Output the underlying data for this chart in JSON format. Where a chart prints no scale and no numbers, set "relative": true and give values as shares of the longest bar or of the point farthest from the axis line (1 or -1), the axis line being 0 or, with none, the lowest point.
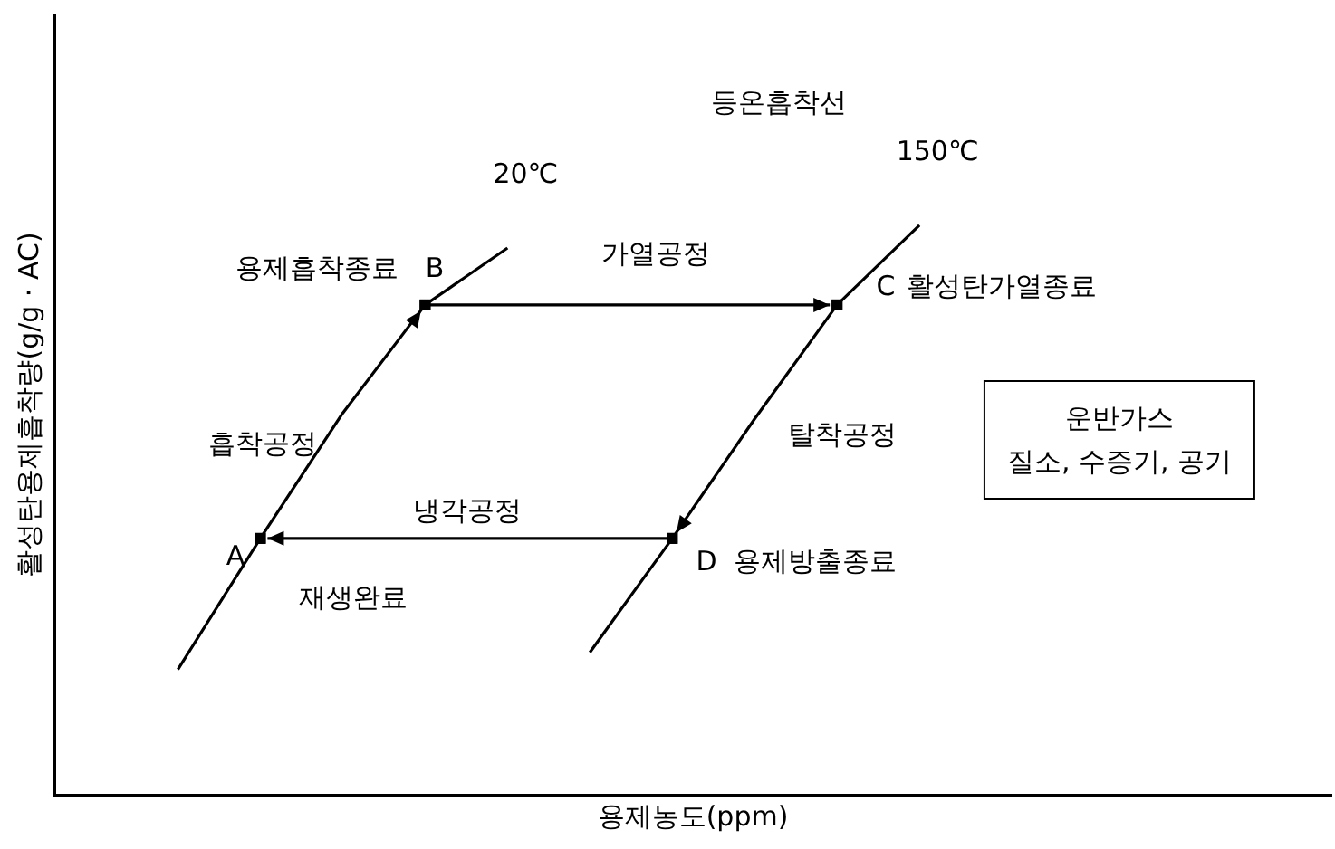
{
  "chart_data": {
    "type": "line",
    "title": "등온흡착선",
    "xlabel": "용제농도(ppm)",
    "ylabel": "활성탄용제흡착량(g/g · AC)",
    "relative": true,
    "categories": [
      null,
      null,
      null,
      null,
      null,
      null,
      null,
      null,
      null,
      null,
      null,
      null,
      null,
      null,
      null,
      null,
      null,
      null,
      null,
      null,
      null,
      null,
      null,
      null,
      null,
      null,
      null,
      null,
      null,
      null,
      null,
      null
    ],
    "series": [
      {
        "name": "20℃",
        "color": "#000000",
        "values": [
          null,
          null,
          null,
          0.22,
          null,
          0.45,
          null,
          0.67,
          null,
          0.86,
          null,
          0.96,
          null,
          null,
          null,
          null,
          null,
          null,
          null,
          null,
          null,
          null,
          null,
          null,
          null,
          null,
          null,
          null,
          null,
          null,
          null,
          null
        ]
      },
      {
        "name": "150℃",
        "color": "#000000",
        "values": [
          null,
          null,
          null,
          null,
          null,
          null,
          null,
          null,
          null,
          null,
          null,
          null,
          null,
          0.25,
          null,
          0.45,
          null,
          0.66,
          null,
          0.86,
          null,
          1,
          null,
          null,
          null,
          null,
          null,
          null,
          null,
          null,
          null,
          null
        ]
      }
    ],
    "annotations": [
      "용제흡착종료",
      "가열공정",
      "활성탄가열종료",
      "흡착공정",
      "탈착공정",
      "냉각공정",
      "재생완료",
      "용제방출종료",
      "A",
      "B",
      "C",
      "D",
      "운반가스\n질소, 수증기, 공기"
    ],
    "grid": false,
    "legend": false,
    "tick_labels": false,
    "marker": "none",
    "line_style": "solid"
  }
}
